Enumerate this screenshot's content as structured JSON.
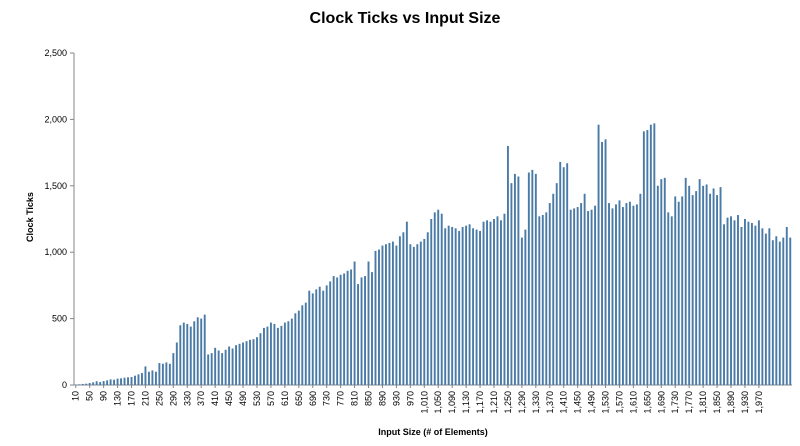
{
  "chart_data": {
    "type": "bar",
    "title": "Clock Ticks vs Input Size",
    "xlabel": "Input Size (# of Elements)",
    "ylabel": "Clock Ticks",
    "ylim": [
      0,
      2500
    ],
    "yticks": [
      "0",
      "500",
      "1,000",
      "1,500",
      "2,000",
      "2,500"
    ],
    "ytick_values": [
      0,
      500,
      1000,
      1500,
      2000,
      2500
    ],
    "xticks": [
      "10",
      "50",
      "90",
      "130",
      "170",
      "210",
      "250",
      "290",
      "330",
      "370",
      "410",
      "450",
      "490",
      "530",
      "570",
      "610",
      "650",
      "690",
      "730",
      "770",
      "810",
      "850",
      "890",
      "930",
      "970",
      "1,010",
      "1,050",
      "1,090",
      "1,130",
      "1,170",
      "1,210",
      "1,250",
      "1,290",
      "1,330",
      "1,370",
      "1,410",
      "1,450",
      "1,490",
      "1,530",
      "1,570",
      "1,610",
      "1,650",
      "1,690",
      "1,730",
      "1,770",
      "1,810",
      "1,850",
      "1,890",
      "1,930",
      "1,970"
    ],
    "x_start": 10,
    "x_step": 10,
    "bar_color": "#4a7ba7",
    "grid": false,
    "values": [
      3,
      5,
      8,
      10,
      15,
      20,
      28,
      22,
      30,
      35,
      42,
      40,
      48,
      50,
      55,
      58,
      60,
      70,
      80,
      90,
      140,
      100,
      110,
      100,
      165,
      160,
      170,
      160,
      240,
      320,
      450,
      470,
      460,
      440,
      480,
      510,
      500,
      530,
      230,
      240,
      280,
      260,
      240,
      265,
      290,
      275,
      300,
      310,
      320,
      330,
      340,
      345,
      360,
      390,
      430,
      440,
      470,
      460,
      430,
      445,
      470,
      480,
      500,
      540,
      560,
      600,
      620,
      710,
      690,
      720,
      740,
      710,
      750,
      780,
      820,
      810,
      830,
      840,
      860,
      870,
      930,
      760,
      810,
      820,
      930,
      850,
      1010,
      1020,
      1050,
      1060,
      1070,
      1080,
      1050,
      1120,
      1150,
      1230,
      1060,
      1040,
      1060,
      1080,
      1100,
      1150,
      1250,
      1300,
      1320,
      1290,
      1180,
      1200,
      1190,
      1180,
      1160,
      1190,
      1200,
      1210,
      1180,
      1170,
      1160,
      1230,
      1240,
      1230,
      1250,
      1270,
      1240,
      1290,
      1800,
      1520,
      1590,
      1570,
      1110,
      1170,
      1600,
      1620,
      1590,
      1270,
      1280,
      1300,
      1370,
      1440,
      1520,
      1680,
      1640,
      1670,
      1320,
      1330,
      1340,
      1370,
      1440,
      1310,
      1320,
      1350,
      1960,
      1830,
      1850,
      1370,
      1330,
      1360,
      1390,
      1340,
      1370,
      1380,
      1350,
      1360,
      1440,
      1910,
      1920,
      1960,
      1970,
      1500,
      1550,
      1560,
      1300,
      1270,
      1420,
      1380,
      1420,
      1560,
      1500,
      1430,
      1460,
      1550,
      1500,
      1510,
      1440,
      1480,
      1430,
      1490,
      1210,
      1260,
      1270,
      1240,
      1280,
      1190,
      1250,
      1230,
      1220,
      1200,
      1240,
      1180,
      1140,
      1180,
      1090,
      1120,
      1080,
      1110,
      1190,
      1110
    ]
  }
}
